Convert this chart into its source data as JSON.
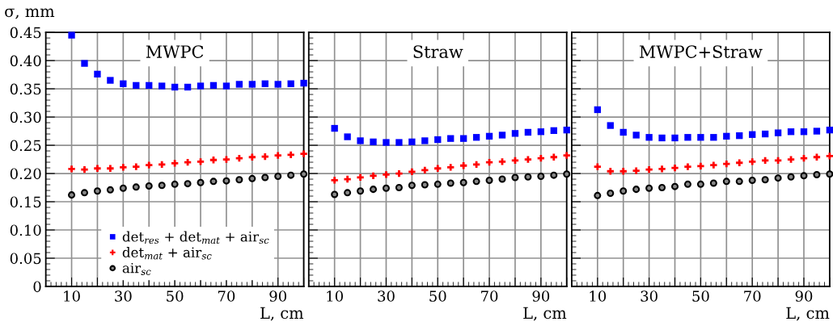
{
  "chart_data": [
    {
      "type": "scatter",
      "title": "MWPC",
      "xlabel": "L, cm",
      "ylabel": "σ, mm",
      "x": [
        10,
        15,
        20,
        25,
        30,
        35,
        40,
        45,
        50,
        55,
        60,
        65,
        70,
        75,
        80,
        85,
        90,
        95,
        100
      ],
      "xlim": [
        0,
        100
      ],
      "xticks": [
        10,
        {
          "value": 20,
          "label": null
        },
        30,
        {
          "value": 40,
          "label": null
        },
        50,
        {
          "value": 60,
          "label": null
        },
        70,
        {
          "value": 80,
          "label": null
        },
        90,
        {
          "value": 100,
          "label": null
        }
      ],
      "ylim": [
        0,
        0.45
      ],
      "yticks": [
        0,
        0.05,
        {
          "value": 0.1,
          "label": "0.10"
        },
        0.15,
        {
          "value": 0.2,
          "label": "0.20"
        },
        0.25,
        {
          "value": 0.3,
          "label": "0.30"
        },
        0.35,
        {
          "value": 0.4,
          "label": "0.40"
        },
        0.45
      ],
      "grid": true,
      "legend": "bottom",
      "series": [
        {
          "name": "det$_{res}$ + det$_{mat}$ + air$_{sc}$",
          "color": "#0000ff",
          "marker": "square",
          "values": [
            0.445,
            0.395,
            0.376,
            0.365,
            0.359,
            0.356,
            0.356,
            0.355,
            0.353,
            0.353,
            0.355,
            0.356,
            0.355,
            0.358,
            0.358,
            0.359,
            0.358,
            0.359,
            0.36
          ]
        },
        {
          "name": "det$_{mat}$ + air$_{sc}$",
          "color": "#ff0000",
          "marker": "cross",
          "values": [
            0.208,
            0.207,
            0.209,
            0.209,
            0.211,
            0.212,
            0.215,
            0.216,
            0.218,
            0.22,
            0.221,
            0.224,
            0.225,
            0.227,
            0.229,
            0.23,
            0.232,
            0.233,
            0.235
          ]
        },
        {
          "name": "air$_{sc}$",
          "color": "#000000",
          "marker": "circle",
          "values": [
            0.162,
            0.166,
            0.169,
            0.171,
            0.174,
            0.176,
            0.178,
            0.179,
            0.181,
            0.182,
            0.184,
            0.186,
            0.187,
            0.189,
            0.191,
            0.193,
            0.195,
            0.197,
            0.199
          ]
        }
      ]
    },
    {
      "type": "scatter",
      "title": "Straw",
      "xlabel": "L, cm",
      "tick_labels": "x",
      "x": [
        10,
        15,
        20,
        25,
        30,
        35,
        40,
        45,
        50,
        55,
        60,
        65,
        70,
        75,
        80,
        85,
        90,
        95,
        100
      ],
      "xlim": [
        0,
        100
      ],
      "xticks": [
        10,
        {
          "value": 20,
          "label": null
        },
        30,
        {
          "value": 40,
          "label": null
        },
        50,
        {
          "value": 60,
          "label": null
        },
        70,
        {
          "value": 80,
          "label": null
        },
        90,
        {
          "value": 100,
          "label": null
        }
      ],
      "ylim": [
        0,
        0.45
      ],
      "yticks": [
        0,
        0.05,
        0.1,
        0.15,
        0.2,
        0.25,
        0.3,
        0.35,
        0.4,
        0.45
      ],
      "grid": true,
      "series": [
        {
          "color": "#0000ff",
          "marker": "square",
          "values": [
            0.28,
            0.265,
            0.258,
            0.256,
            0.255,
            0.255,
            0.256,
            0.258,
            0.26,
            0.262,
            0.262,
            0.264,
            0.266,
            0.268,
            0.271,
            0.273,
            0.274,
            0.276,
            0.277
          ]
        },
        {
          "color": "#ff0000",
          "marker": "cross",
          "values": [
            0.188,
            0.19,
            0.193,
            0.196,
            0.198,
            0.2,
            0.203,
            0.206,
            0.209,
            0.211,
            0.214,
            0.216,
            0.22,
            0.221,
            0.223,
            0.225,
            0.227,
            0.229,
            0.232
          ]
        },
        {
          "color": "#000000",
          "marker": "circle",
          "values": [
            0.163,
            0.166,
            0.169,
            0.172,
            0.174,
            0.175,
            0.179,
            0.18,
            0.181,
            0.183,
            0.184,
            0.186,
            0.188,
            0.19,
            0.193,
            0.194,
            0.195,
            0.197,
            0.199
          ]
        }
      ]
    },
    {
      "type": "scatter",
      "title": "MWPC+Straw",
      "xlabel": "L, cm",
      "tick_labels": "x",
      "x": [
        10,
        15,
        20,
        25,
        30,
        35,
        40,
        45,
        50,
        55,
        60,
        65,
        70,
        75,
        80,
        85,
        90,
        95,
        100
      ],
      "xlim": [
        0,
        100
      ],
      "xticks": [
        10,
        {
          "value": 20,
          "label": null
        },
        30,
        {
          "value": 40,
          "label": null
        },
        50,
        {
          "value": 60,
          "label": null
        },
        70,
        {
          "value": 80,
          "label": null
        },
        90,
        {
          "value": 100,
          "label": null
        }
      ],
      "ylim": [
        0,
        0.45
      ],
      "yticks": [
        0,
        0.05,
        0.1,
        0.15,
        0.2,
        0.25,
        0.3,
        0.35,
        0.4,
        0.45
      ],
      "grid": true,
      "series": [
        {
          "color": "#0000ff",
          "marker": "square",
          "values": [
            0.313,
            0.285,
            0.273,
            0.268,
            0.264,
            0.263,
            0.263,
            0.264,
            0.264,
            0.264,
            0.266,
            0.267,
            0.269,
            0.27,
            0.272,
            0.274,
            0.274,
            0.275,
            0.277
          ]
        },
        {
          "color": "#ff0000",
          "marker": "cross",
          "values": [
            0.212,
            0.204,
            0.204,
            0.205,
            0.207,
            0.208,
            0.21,
            0.212,
            0.213,
            0.215,
            0.217,
            0.219,
            0.221,
            0.223,
            0.223,
            0.225,
            0.227,
            0.229,
            0.231
          ]
        },
        {
          "color": "#000000",
          "marker": "circle",
          "values": [
            0.161,
            0.165,
            0.169,
            0.172,
            0.174,
            0.175,
            0.177,
            0.181,
            0.181,
            0.183,
            0.186,
            0.186,
            0.188,
            0.189,
            0.192,
            0.194,
            0.196,
            0.198,
            0.199
          ]
        }
      ]
    }
  ]
}
